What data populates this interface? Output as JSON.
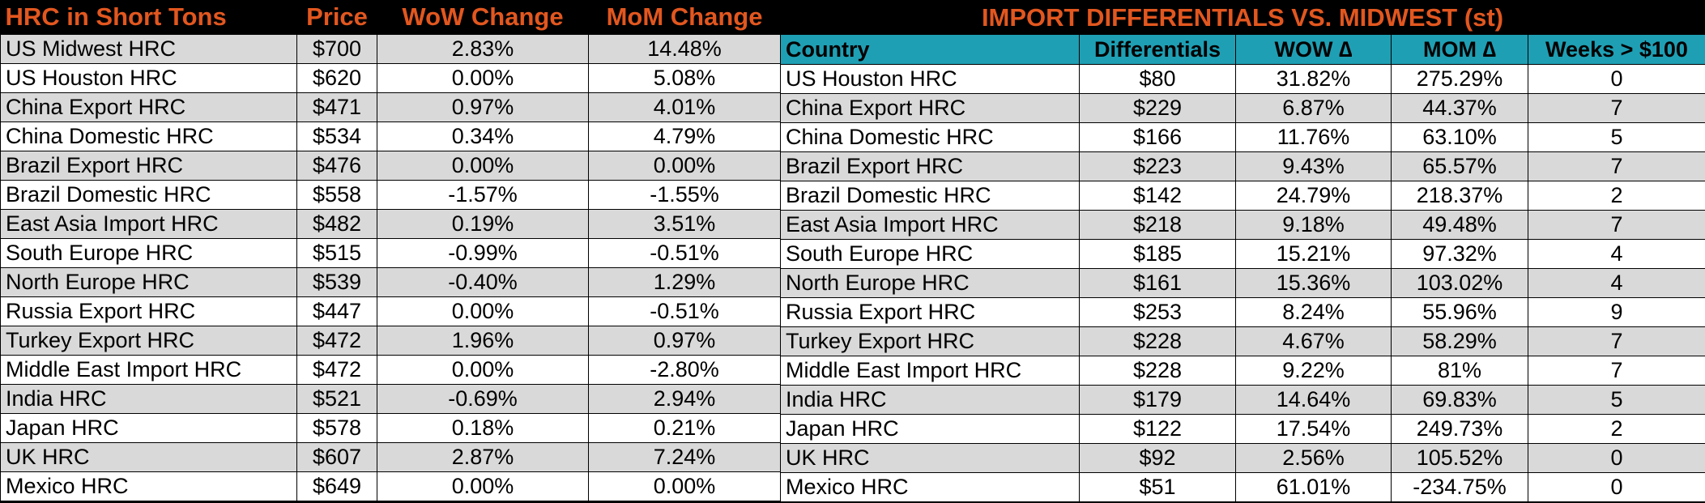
{
  "left": {
    "headers": [
      "HRC in Short Tons",
      "Price",
      "WoW Change",
      "MoM Change"
    ],
    "rows": [
      [
        "US Midwest HRC",
        "$700",
        "2.83%",
        "14.48%"
      ],
      [
        "US Houston HRC",
        "$620",
        "0.00%",
        "5.08%"
      ],
      [
        "China Export HRC",
        "$471",
        "0.97%",
        "4.01%"
      ],
      [
        "China Domestic HRC",
        "$534",
        "0.34%",
        "4.79%"
      ],
      [
        "Brazil Export HRC",
        "$476",
        "0.00%",
        "0.00%"
      ],
      [
        "Brazil Domestic HRC",
        "$558",
        "-1.57%",
        "-1.55%"
      ],
      [
        "East Asia Import HRC",
        "$482",
        "0.19%",
        "3.51%"
      ],
      [
        "South Europe HRC",
        "$515",
        "-0.99%",
        "-0.51%"
      ],
      [
        "North Europe HRC",
        "$539",
        "-0.40%",
        "1.29%"
      ],
      [
        "Russia Export HRC",
        "$447",
        "0.00%",
        "-0.51%"
      ],
      [
        "Turkey Export HRC",
        "$472",
        "1.96%",
        "0.97%"
      ],
      [
        "Middle East Import HRC",
        "$472",
        "0.00%",
        "-2.80%"
      ],
      [
        "India HRC",
        "$521",
        "-0.69%",
        "2.94%"
      ],
      [
        "Japan HRC",
        "$578",
        "0.18%",
        "0.21%"
      ],
      [
        "UK HRC",
        "$607",
        "2.87%",
        "7.24%"
      ],
      [
        "Mexico HRC",
        "$649",
        "0.00%",
        "0.00%"
      ]
    ]
  },
  "right": {
    "title": "IMPORT DIFFERENTIALS VS. MIDWEST (st)",
    "headers": [
      "Country",
      "Differentials",
      "WOW ∆",
      "MOM ∆",
      "Weeks > $100"
    ],
    "rows": [
      [
        "US Houston HRC",
        "$80",
        "31.82%",
        "275.29%",
        "0"
      ],
      [
        "China Export HRC",
        "$229",
        "6.87%",
        "44.37%",
        "7"
      ],
      [
        "China Domestic HRC",
        "$166",
        "11.76%",
        "63.10%",
        "5"
      ],
      [
        "Brazil Export HRC",
        "$223",
        "9.43%",
        "65.57%",
        "7"
      ],
      [
        "Brazil Domestic HRC",
        "$142",
        "24.79%",
        "218.37%",
        "2"
      ],
      [
        "East Asia Import HRC",
        "$218",
        "9.18%",
        "49.48%",
        "7"
      ],
      [
        "South Europe HRC",
        "$185",
        "15.21%",
        "97.32%",
        "4"
      ],
      [
        "North Europe HRC",
        "$161",
        "15.36%",
        "103.02%",
        "4"
      ],
      [
        "Russia Export HRC",
        "$253",
        "8.24%",
        "55.96%",
        "9"
      ],
      [
        "Turkey Export HRC",
        "$228",
        "4.67%",
        "58.29%",
        "7"
      ],
      [
        "Middle East Import HRC",
        "$228",
        "9.22%",
        "81%",
        "7"
      ],
      [
        "India HRC",
        "$179",
        "14.64%",
        "69.83%",
        "5"
      ],
      [
        "Japan HRC",
        "$122",
        "17.54%",
        "249.73%",
        "2"
      ],
      [
        "UK HRC",
        "$92",
        "2.56%",
        "105.52%",
        "0"
      ],
      [
        "Mexico HRC",
        "$51",
        "61.01%",
        "-234.75%",
        "0"
      ]
    ]
  },
  "colors": {
    "title_text": "#e2571f",
    "header_bg": "#1f9fb4",
    "row_shade": "#d9d9d9",
    "row_plain": "#ffffff",
    "background": "#000000"
  }
}
